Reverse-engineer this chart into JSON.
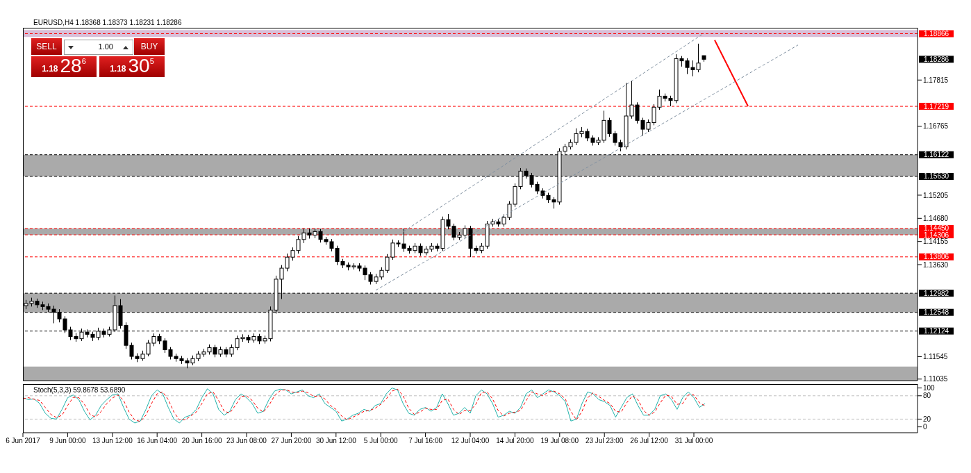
{
  "chart_data": [
    {
      "type": "candlestick",
      "title": "EURUSD,H4  1.18368 1.18373 1.18231 1.18286",
      "categories": [
        null,
        null,
        null,
        null,
        null,
        null,
        null,
        null,
        null,
        null,
        null,
        null,
        null,
        null,
        null,
        null,
        null,
        null,
        null,
        null,
        null,
        null,
        null,
        null,
        null,
        null,
        null,
        null,
        null,
        null,
        null,
        null,
        null,
        null,
        null,
        null,
        null,
        null,
        null,
        null,
        null,
        null,
        null,
        null,
        null,
        null,
        null,
        null,
        null,
        null,
        null,
        null,
        null,
        null,
        null,
        null,
        null,
        null,
        null,
        null,
        null,
        null,
        null,
        null,
        null,
        null,
        null,
        null,
        null,
        null,
        null,
        null,
        null,
        null,
        null,
        null,
        null,
        null,
        null,
        null,
        null,
        null,
        null,
        null,
        null,
        null,
        null,
        null,
        null,
        null,
        null,
        null,
        null,
        null,
        null,
        null,
        null,
        null,
        null,
        null,
        null,
        null,
        null,
        null,
        null,
        null,
        null,
        null,
        null,
        null,
        null,
        null,
        null,
        null,
        null,
        null,
        null,
        null,
        null,
        null,
        null,
        null,
        null,
        null,
        null,
        null,
        null,
        null,
        null,
        null,
        null,
        null,
        null,
        null,
        null,
        null,
        null,
        null,
        null,
        null,
        null,
        null,
        null,
        null,
        null,
        null,
        null,
        null,
        null,
        null,
        null,
        null,
        null,
        null,
        null,
        null,
        null,
        null,
        null,
        null,
        null
      ],
      "ohlc": [
        [
          1.127,
          1.1283,
          1.1262,
          1.1275
        ],
        [
          1.1275,
          1.1288,
          1.1268,
          1.128
        ],
        [
          1.128,
          1.1286,
          1.1265,
          1.1272
        ],
        [
          1.1272,
          1.1279,
          1.126,
          1.1268
        ],
        [
          1.1268,
          1.1275,
          1.1255,
          1.1262
        ],
        [
          1.1262,
          1.127,
          1.123,
          1.1255
        ],
        [
          1.1255,
          1.1262,
          1.1232,
          1.124
        ],
        [
          1.124,
          1.1246,
          1.1208,
          1.1215
        ],
        [
          1.1215,
          1.1222,
          1.1192,
          1.12
        ],
        [
          1.12,
          1.1208,
          1.1188,
          1.1195
        ],
        [
          1.1195,
          1.1218,
          1.119,
          1.121
        ],
        [
          1.121,
          1.1216,
          1.1198,
          1.1205
        ],
        [
          1.1205,
          1.1211,
          1.119,
          1.1198
        ],
        [
          1.1198,
          1.122,
          1.1192,
          1.1212
        ],
        [
          1.1212,
          1.1218,
          1.1198,
          1.1205
        ],
        [
          1.1205,
          1.1222,
          1.12,
          1.1215
        ],
        [
          1.1215,
          1.1293,
          1.121,
          1.127
        ],
        [
          1.127,
          1.1285,
          1.1218,
          1.1225
        ],
        [
          1.1225,
          1.1232,
          1.1172,
          1.118
        ],
        [
          1.118,
          1.1186,
          1.1148,
          1.1155
        ],
        [
          1.1155,
          1.1162,
          1.1142,
          1.115
        ],
        [
          1.115,
          1.1168,
          1.1145,
          1.116
        ],
        [
          1.116,
          1.1192,
          1.1155,
          1.1185
        ],
        [
          1.1185,
          1.1207,
          1.1178,
          1.12
        ],
        [
          1.12,
          1.1206,
          1.1183,
          1.119
        ],
        [
          1.119,
          1.1196,
          1.1163,
          1.117
        ],
        [
          1.117,
          1.1176,
          1.1148,
          1.1155
        ],
        [
          1.1155,
          1.1161,
          1.1143,
          1.115
        ],
        [
          1.115,
          1.1156,
          1.1138,
          1.1145
        ],
        [
          1.1145,
          1.1151,
          1.1128,
          1.114
        ],
        [
          1.114,
          1.1157,
          1.1135,
          1.115
        ],
        [
          1.115,
          1.1167,
          1.1144,
          1.116
        ],
        [
          1.116,
          1.1172,
          1.1154,
          1.1165
        ],
        [
          1.1165,
          1.1182,
          1.1159,
          1.1175
        ],
        [
          1.1175,
          1.1181,
          1.1153,
          1.116
        ],
        [
          1.116,
          1.1177,
          1.1154,
          1.117
        ],
        [
          1.117,
          1.1176,
          1.1153,
          1.116
        ],
        [
          1.116,
          1.1182,
          1.1154,
          1.1175
        ],
        [
          1.1175,
          1.1202,
          1.1169,
          1.1195
        ],
        [
          1.1195,
          1.1205,
          1.1188,
          1.1198
        ],
        [
          1.1198,
          1.1204,
          1.1185,
          1.1192
        ],
        [
          1.1192,
          1.1207,
          1.1186,
          1.12
        ],
        [
          1.12,
          1.1206,
          1.1183,
          1.119
        ],
        [
          1.119,
          1.1202,
          1.1184,
          1.1195
        ],
        [
          1.1195,
          1.1268,
          1.1189,
          1.126
        ],
        [
          1.126,
          1.1338,
          1.1252,
          1.133
        ],
        [
          1.133,
          1.1362,
          1.1285,
          1.1355
        ],
        [
          1.1355,
          1.1388,
          1.1348,
          1.138
        ],
        [
          1.138,
          1.1402,
          1.1372,
          1.1395
        ],
        [
          1.1395,
          1.1428,
          1.1388,
          1.142
        ],
        [
          1.142,
          1.1445,
          1.1412,
          1.1435
        ],
        [
          1.1435,
          1.1445,
          1.1422,
          1.143
        ],
        [
          1.143,
          1.1445,
          1.1423,
          1.1438
        ],
        [
          1.1438,
          1.1444,
          1.1413,
          1.142
        ],
        [
          1.142,
          1.1426,
          1.1408,
          1.1415
        ],
        [
          1.1415,
          1.1421,
          1.1393,
          1.14
        ],
        [
          1.14,
          1.1406,
          1.1362,
          1.137
        ],
        [
          1.137,
          1.1376,
          1.1355,
          1.1362
        ],
        [
          1.1362,
          1.1368,
          1.135,
          1.1358
        ],
        [
          1.1358,
          1.1366,
          1.1352,
          1.136
        ],
        [
          1.136,
          1.1366,
          1.1348,
          1.1355
        ],
        [
          1.1355,
          1.1361,
          1.1328,
          1.134
        ],
        [
          1.134,
          1.1346,
          1.1318,
          1.1325
        ],
        [
          1.1325,
          1.1342,
          1.1319,
          1.1335
        ],
        [
          1.1335,
          1.1357,
          1.1329,
          1.135
        ],
        [
          1.135,
          1.1387,
          1.1344,
          1.138
        ],
        [
          1.138,
          1.142,
          1.1374,
          1.1412
        ],
        [
          1.1412,
          1.1418,
          1.1403,
          1.141
        ],
        [
          1.141,
          1.1445,
          1.1392,
          1.14
        ],
        [
          1.14,
          1.1406,
          1.1388,
          1.1395
        ],
        [
          1.1395,
          1.1412,
          1.1389,
          1.1405
        ],
        [
          1.1405,
          1.1411,
          1.1383,
          1.139
        ],
        [
          1.139,
          1.1405,
          1.1384,
          1.1398
        ],
        [
          1.1398,
          1.1412,
          1.1392,
          1.1405
        ],
        [
          1.1405,
          1.1411,
          1.1393,
          1.14
        ],
        [
          1.14,
          1.1472,
          1.1394,
          1.1465
        ],
        [
          1.1465,
          1.1478,
          1.1443,
          1.145
        ],
        [
          1.145,
          1.1456,
          1.1418,
          1.1425
        ],
        [
          1.1425,
          1.1437,
          1.1419,
          1.143
        ],
        [
          1.143,
          1.1452,
          1.1424,
          1.1445
        ],
        [
          1.1445,
          1.1451,
          1.138,
          1.14
        ],
        [
          1.14,
          1.1406,
          1.1388,
          1.1395
        ],
        [
          1.1395,
          1.1412,
          1.1389,
          1.1405
        ],
        [
          1.1405,
          1.1462,
          1.1399,
          1.1455
        ],
        [
          1.1455,
          1.1467,
          1.1449,
          1.146
        ],
        [
          1.146,
          1.1466,
          1.1449,
          1.1455
        ],
        [
          1.1455,
          1.1477,
          1.1449,
          1.147
        ],
        [
          1.147,
          1.1507,
          1.1464,
          1.15
        ],
        [
          1.15,
          1.1547,
          1.1494,
          1.154
        ],
        [
          1.154,
          1.1582,
          1.1534,
          1.1575
        ],
        [
          1.1575,
          1.1581,
          1.1558,
          1.1565
        ],
        [
          1.1565,
          1.1571,
          1.1538,
          1.1545
        ],
        [
          1.1545,
          1.1551,
          1.1523,
          1.153
        ],
        [
          1.153,
          1.1536,
          1.1513,
          1.152
        ],
        [
          1.152,
          1.1526,
          1.1503,
          1.151
        ],
        [
          1.151,
          1.1516,
          1.149,
          1.1505
        ],
        [
          1.1505,
          1.1627,
          1.1499,
          1.162
        ],
        [
          1.162,
          1.1637,
          1.1614,
          1.163
        ],
        [
          1.163,
          1.1647,
          1.1624,
          1.164
        ],
        [
          1.164,
          1.1672,
          1.1634,
          1.166
        ],
        [
          1.166,
          1.1675,
          1.1652,
          1.1665
        ],
        [
          1.1665,
          1.1671,
          1.1643,
          1.165
        ],
        [
          1.165,
          1.1656,
          1.1633,
          1.164
        ],
        [
          1.164,
          1.1652,
          1.1634,
          1.1645
        ],
        [
          1.1645,
          1.1712,
          1.1639,
          1.169
        ],
        [
          1.169,
          1.1696,
          1.1653,
          1.166
        ],
        [
          1.166,
          1.1666,
          1.1633,
          1.164
        ],
        [
          1.164,
          1.1646,
          1.162,
          1.163
        ],
        [
          1.163,
          1.1775,
          1.1624,
          1.17
        ],
        [
          1.17,
          1.178,
          1.1694,
          1.1725
        ],
        [
          1.1725,
          1.1731,
          1.1683,
          1.169
        ],
        [
          1.169,
          1.1696,
          1.1655,
          1.167
        ],
        [
          1.167,
          1.1692,
          1.1664,
          1.1685
        ],
        [
          1.1685,
          1.1727,
          1.1679,
          1.172
        ],
        [
          1.172,
          1.176,
          1.1714,
          1.1745
        ],
        [
          1.1745,
          1.1751,
          1.1733,
          1.174
        ],
        [
          1.174,
          1.1746,
          1.1722,
          1.1735
        ],
        [
          1.1735,
          1.184,
          1.1729,
          1.183
        ],
        [
          1.183,
          1.1836,
          1.1812,
          1.1825
        ],
        [
          1.1825,
          1.1831,
          1.1795,
          1.181
        ],
        [
          1.181,
          1.1826,
          1.179,
          1.1805
        ],
        [
          1.1805,
          1.1864,
          1.1799,
          1.182
        ],
        [
          1.18368,
          1.18373,
          1.18231,
          1.18286
        ],
        null,
        null,
        null,
        null,
        null,
        null,
        null,
        null,
        null,
        null,
        null,
        null,
        null,
        null,
        null,
        null,
        null,
        null,
        null,
        null,
        null,
        null,
        null,
        null,
        null,
        null,
        null,
        null,
        null,
        null,
        null,
        null,
        null,
        null,
        null,
        null,
        null,
        null
      ],
      "series": [
        {
          "type": "line",
          "color": "#8090a0",
          "line_style": "dashed",
          "values": [
            null,
            null,
            null,
            null,
            null,
            null,
            null,
            null,
            null,
            null,
            null,
            null,
            null,
            null,
            null,
            null,
            null,
            null,
            null,
            null,
            null,
            null,
            null,
            null,
            null,
            null,
            null,
            null,
            null,
            null,
            null,
            null,
            null,
            null,
            null,
            null,
            null,
            null,
            null,
            null,
            null,
            null,
            null,
            null,
            null,
            null,
            null,
            null,
            null,
            null,
            null,
            null,
            null,
            null,
            null,
            null,
            null,
            null,
            null,
            null,
            null,
            null,
            null,
            null,
            null,
            null,
            null,
            null,
            1.1438,
            null,
            null,
            null,
            null,
            null,
            null,
            null,
            null,
            null,
            null,
            null,
            null,
            null,
            null,
            null,
            null,
            null,
            null,
            null,
            null,
            null,
            null,
            null,
            null,
            null,
            null,
            null,
            null,
            null,
            null,
            null,
            null,
            null,
            null,
            null,
            null,
            null,
            null,
            null,
            null,
            null,
            null,
            null,
            null,
            null,
            null,
            null,
            null,
            null,
            null,
            null,
            null,
            null,
            1.1887,
            null,
            null,
            null,
            null,
            null,
            null,
            null,
            null,
            null,
            null,
            null,
            null,
            null,
            null,
            null,
            null,
            null,
            null,
            null,
            null,
            null,
            null,
            null,
            null,
            null,
            null,
            null,
            null,
            null,
            null,
            null,
            null,
            null,
            null,
            null,
            null,
            null,
            null
          ]
        },
        {
          "type": "line",
          "color": "#8090a0",
          "line_style": "dashed",
          "values": [
            null,
            null,
            null,
            null,
            null,
            null,
            null,
            null,
            null,
            null,
            null,
            null,
            null,
            null,
            null,
            null,
            null,
            null,
            null,
            null,
            null,
            null,
            null,
            null,
            null,
            null,
            null,
            null,
            null,
            null,
            null,
            null,
            null,
            null,
            null,
            null,
            null,
            null,
            null,
            null,
            null,
            null,
            null,
            null,
            null,
            null,
            null,
            null,
            null,
            null,
            null,
            null,
            null,
            null,
            null,
            null,
            null,
            null,
            null,
            null,
            null,
            null,
            null,
            1.1305,
            null,
            null,
            null,
            null,
            null,
            null,
            null,
            null,
            null,
            null,
            null,
            null,
            null,
            null,
            null,
            null,
            null,
            null,
            null,
            null,
            null,
            null,
            null,
            null,
            null,
            null,
            null,
            null,
            null,
            null,
            null,
            null,
            null,
            null,
            null,
            null,
            null,
            null,
            null,
            null,
            null,
            null,
            null,
            null,
            null,
            null,
            null,
            null,
            null,
            null,
            null,
            null,
            null,
            null,
            null,
            null,
            null,
            null,
            null,
            null,
            null,
            null,
            null,
            null,
            null,
            null,
            null,
            null,
            null,
            null,
            null,
            null,
            null,
            null,
            null,
            1.1861,
            null,
            null,
            null,
            null,
            null,
            null,
            null,
            null,
            null,
            null,
            null,
            null,
            null,
            null,
            null,
            null,
            null,
            null,
            null,
            null,
            null
          ]
        },
        {
          "type": "line",
          "color": "#ff0000",
          "line_style": "solid",
          "values": [
            null,
            null,
            null,
            null,
            null,
            null,
            null,
            null,
            null,
            null,
            null,
            null,
            null,
            null,
            null,
            null,
            null,
            null,
            null,
            null,
            null,
            null,
            null,
            null,
            null,
            null,
            null,
            null,
            null,
            null,
            null,
            null,
            null,
            null,
            null,
            null,
            null,
            null,
            null,
            null,
            null,
            null,
            null,
            null,
            null,
            null,
            null,
            null,
            null,
            null,
            null,
            null,
            null,
            null,
            null,
            null,
            null,
            null,
            null,
            null,
            null,
            null,
            null,
            null,
            null,
            null,
            null,
            null,
            null,
            null,
            null,
            null,
            null,
            null,
            null,
            null,
            null,
            null,
            null,
            null,
            null,
            null,
            null,
            null,
            null,
            null,
            null,
            null,
            null,
            null,
            null,
            null,
            null,
            null,
            null,
            null,
            null,
            null,
            null,
            null,
            null,
            null,
            null,
            null,
            null,
            null,
            null,
            null,
            null,
            null,
            null,
            null,
            null,
            null,
            null,
            null,
            null,
            null,
            null,
            null,
            null,
            null,
            null,
            null,
            1.1872,
            null,
            null,
            null,
            null,
            null,
            1.1722,
            null,
            null,
            null,
            null,
            null,
            null,
            null,
            null,
            null,
            null,
            null,
            null,
            null,
            null,
            null,
            null,
            null,
            null,
            null,
            null,
            null,
            null,
            null,
            null,
            null,
            null,
            null,
            null,
            null,
            null
          ]
        }
      ],
      "ylim": [
        1.11,
        1.19
      ],
      "yticks": [
        1.11035,
        1.11545,
        {
          "value": 1.1363,
          "label": "1.13630"
        },
        1.14155,
        {
          "value": 1.1468,
          "label": "1.14680"
        },
        1.15205,
        1.16765,
        1.17815
      ],
      "tick_labels": "y",
      "bands": [
        {
          "axis": "y",
          "from": 1.1879,
          "to": 1.1895,
          "color": "#d8bfd8"
        },
        {
          "axis": "y",
          "from": 1.1563,
          "to": 1.16122,
          "color": "#aaaaaa"
        },
        {
          "axis": "y",
          "from": 1.14306,
          "to": 1.1445,
          "color": "#aaaaaa"
        },
        {
          "axis": "y",
          "from": 1.12548,
          "to": 1.12982,
          "color": "#aaaaaa"
        },
        {
          "axis": "y",
          "from": 1.11,
          "to": 1.1132,
          "color": "#aaaaaa"
        }
      ],
      "ref_lines": [
        {
          "axis": "y",
          "value": 1.18866,
          "label": "1.18866",
          "color": "#ff0000",
          "line_style": "dashed"
        },
        {
          "axis": "y",
          "value": 1.17219,
          "label": "1.17219",
          "color": "#ff0000",
          "line_style": "dashed"
        },
        {
          "axis": "y",
          "value": 1.16122,
          "label": "1.16122",
          "color": "#000000",
          "line_style": "dashed"
        },
        {
          "axis": "y",
          "value": 1.1563,
          "label": "1.15630",
          "color": "#000000",
          "line_style": "dashed"
        },
        {
          "axis": "y",
          "value": 1.1445,
          "label": "1.14450",
          "color": "#ff0000",
          "line_style": "dashed"
        },
        {
          "axis": "y",
          "value": 1.14306,
          "label": "1.14306",
          "color": "#ff0000",
          "line_style": "dashed"
        },
        {
          "axis": "y",
          "value": 1.13806,
          "label": "1.13806",
          "color": "#ff0000",
          "line_style": "dashed"
        },
        {
          "axis": "y",
          "value": 1.12982,
          "label": "1.12982",
          "color": "#000000",
          "line_style": "dashed"
        },
        {
          "axis": "y",
          "value": 1.12548,
          "label": "1.12548",
          "color": "#000000",
          "line_style": "dashed"
        },
        {
          "axis": "y",
          "value": 1.12124,
          "label": "1.12124",
          "color": "#000000",
          "line_style": "dashed"
        }
      ],
      "annotations": [
        "SELL",
        "1.00",
        "BUY",
        "1.18",
        "28",
        "6",
        "1.18",
        "30",
        "5",
        "1.18286"
      ]
    },
    {
      "type": "line",
      "title": "Stoch(5,3,3) 59.8678 53.6890",
      "categories": [
        "6 Jun 2017",
        null,
        null,
        null,
        null,
        null,
        null,
        null,
        "9 Jun 00:00",
        null,
        null,
        null,
        null,
        null,
        null,
        null,
        "13 Jun 12:00",
        null,
        null,
        null,
        null,
        null,
        null,
        null,
        "16 Jun 04:00",
        null,
        null,
        null,
        null,
        null,
        null,
        null,
        "20 Jun 16:00",
        null,
        null,
        null,
        null,
        null,
        null,
        null,
        "23 Jun 08:00",
        null,
        null,
        null,
        null,
        null,
        null,
        null,
        "27 Jun 20:00",
        null,
        null,
        null,
        null,
        null,
        null,
        null,
        "30 Jun 12:00",
        null,
        null,
        null,
        null,
        null,
        null,
        null,
        "5 Jul 00:00",
        null,
        null,
        null,
        null,
        null,
        null,
        null,
        "7 Jul 16:00",
        null,
        null,
        null,
        null,
        null,
        null,
        null,
        "12 Jul 04:00",
        null,
        null,
        null,
        null,
        null,
        null,
        null,
        "14 Jul 20:00",
        null,
        null,
        null,
        null,
        null,
        null,
        null,
        "19 Jul 08:00",
        null,
        null,
        null,
        null,
        null,
        null,
        null,
        "23 Jul 23:00",
        null,
        null,
        null,
        null,
        null,
        null,
        null,
        "26 Jul 12:00",
        null,
        null,
        null,
        null,
        null,
        null,
        null,
        "31 Jul 00:00",
        null,
        null,
        null,
        null,
        null,
        null,
        null,
        null,
        null,
        null,
        null,
        null,
        null,
        null,
        null,
        null,
        null,
        null,
        null,
        null,
        null,
        null,
        null,
        null,
        null,
        null,
        null,
        null,
        null,
        null,
        null,
        null,
        null,
        null,
        null,
        null,
        null,
        null,
        null,
        null
      ],
      "series": [
        {
          "color": "#20b2aa",
          "line_style": "solid",
          "values": [
            75,
            70,
            72,
            60,
            35,
            22,
            20,
            45,
            75,
            82,
            70,
            40,
            18,
            30,
            55,
            70,
            82,
            85,
            50,
            20,
            10,
            15,
            45,
            80,
            95,
            85,
            50,
            20,
            10,
            25,
            30,
            45,
            75,
            98,
            85,
            45,
            30,
            40,
            70,
            85,
            75,
            60,
            35,
            40,
            70,
            92,
            97,
            95,
            85,
            90,
            95,
            80,
            75,
            85,
            60,
            50,
            40,
            15,
            20,
            30,
            35,
            45,
            40,
            55,
            60,
            85,
            100,
            95,
            60,
            35,
            30,
            45,
            50,
            40,
            50,
            85,
            60,
            30,
            35,
            50,
            35,
            80,
            95,
            85,
            60,
            25,
            30,
            40,
            35,
            50,
            85,
            95,
            75,
            85,
            95,
            90,
            80,
            65,
            15,
            20,
            60,
            90,
            85,
            70,
            65,
            55,
            25,
            50,
            75,
            85,
            55,
            30,
            30,
            45,
            80,
            85,
            70,
            45,
            75,
            90,
            75,
            50,
            60,
            null,
            null,
            null,
            null,
            null,
            null,
            null,
            null,
            null,
            null,
            null,
            null,
            null,
            null,
            null,
            null,
            null,
            null,
            null,
            null,
            null,
            null,
            null,
            null,
            null,
            null,
            null,
            null,
            null,
            null,
            null,
            null,
            null,
            null,
            null,
            null,
            null,
            null
          ]
        },
        {
          "color": "#ff0000",
          "line_style": "dashed",
          "values": [
            72,
            75,
            71,
            68,
            50,
            32,
            24,
            30,
            55,
            76,
            75,
            58,
            32,
            25,
            40,
            60,
            74,
            82,
            68,
            38,
            18,
            14,
            30,
            60,
            85,
            90,
            70,
            38,
            18,
            18,
            28,
            38,
            60,
            85,
            90,
            68,
            40,
            36,
            55,
            78,
            80,
            68,
            48,
            38,
            55,
            80,
            93,
            96,
            90,
            88,
            92,
            88,
            78,
            80,
            72,
            55,
            45,
            28,
            18,
            25,
            32,
            40,
            42,
            48,
            58,
            72,
            92,
            97,
            80,
            48,
            32,
            38,
            48,
            45,
            45,
            68,
            72,
            45,
            32,
            42,
            42,
            58,
            88,
            90,
            72,
            42,
            28,
            35,
            38,
            42,
            68,
            90,
            85,
            80,
            90,
            92,
            85,
            72,
            40,
            18,
            40,
            75,
            88,
            78,
            68,
            60,
            40,
            38,
            62,
            80,
            70,
            42,
            30,
            38,
            62,
            82,
            78,
            58,
            60,
            82,
            82,
            62,
            54,
            null,
            null,
            null,
            null,
            null,
            null,
            null,
            null,
            null,
            null,
            null,
            null,
            null,
            null,
            null,
            null,
            null,
            null,
            null,
            null,
            null,
            null,
            null,
            null,
            null,
            null,
            null,
            null,
            null,
            null,
            null,
            null,
            null,
            null,
            null,
            null,
            null,
            null
          ]
        }
      ],
      "ylim": [
        -15,
        110
      ],
      "yticks": [
        0,
        20,
        80,
        100
      ],
      "ref_lines": [
        {
          "axis": "y",
          "value": 20,
          "color": "#c0c0c0",
          "line_style": "dashed"
        },
        {
          "axis": "y",
          "value": 80,
          "color": "#c0c0c0",
          "line_style": "dashed"
        }
      ]
    }
  ]
}
